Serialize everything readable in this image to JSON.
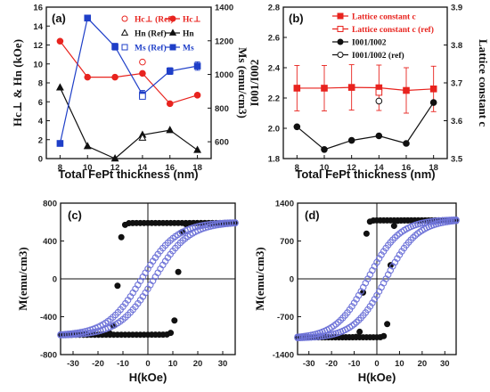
{
  "colors": {
    "red": "#e8231e",
    "blue": "#1f3fc8",
    "black": "#111111",
    "hyst_blue": "#6f74d8"
  },
  "chart_data": [
    {
      "panel": "(a)",
      "type": "line",
      "xlabel": "Total FePt thickness (nm)",
      "ylabel_left": "H<sub>c⊥</sub> & H<sub>n</sub> (kOe)",
      "ylabel_left_text": "Hc⊥ & Hn (kOe)",
      "ylabel_right": "Ms (emu/cm3)",
      "xlim": [
        7,
        19
      ],
      "ylim_left": [
        0,
        16
      ],
      "ylim_right": [
        500,
        1400
      ],
      "xticks": [
        "8",
        "10",
        "12",
        "14",
        "16",
        "18"
      ],
      "yticks_left": [
        "0",
        "2",
        "4",
        "6",
        "8",
        "10",
        "12",
        "14",
        "16"
      ],
      "yticks_right": [
        "600",
        "800",
        "1000",
        "1200",
        "1400"
      ],
      "legend": [
        "Hc⊥ (Ref)",
        "Hc⊥",
        "Hn (Ref)",
        "Hn",
        "Ms (Ref)",
        "Ms"
      ],
      "series": [
        {
          "name": "Hc⊥",
          "axis": "left",
          "color": "red",
          "marker": "circle",
          "filled": true,
          "x": [
            8,
            10,
            12,
            14,
            16,
            18
          ],
          "y": [
            12.4,
            8.6,
            8.6,
            9.0,
            5.8,
            6.7
          ]
        },
        {
          "name": "Hc⊥ (Ref)",
          "axis": "left",
          "color": "red",
          "marker": "circle",
          "filled": false,
          "x": [
            14
          ],
          "y": [
            10.2
          ]
        },
        {
          "name": "Hn",
          "axis": "left",
          "color": "black",
          "marker": "triangle",
          "filled": true,
          "x": [
            8,
            10,
            12,
            14,
            16,
            18
          ],
          "y": [
            7.5,
            1.3,
            0.0,
            2.5,
            3.0,
            0.9
          ]
        },
        {
          "name": "Hn (Ref)",
          "axis": "left",
          "color": "black",
          "marker": "triangle",
          "filled": false,
          "x": [
            14
          ],
          "y": [
            2.2
          ]
        },
        {
          "name": "Ms",
          "axis": "right",
          "color": "blue",
          "marker": "square",
          "filled": true,
          "x": [
            8,
            10,
            12,
            14,
            16,
            18
          ],
          "y": [
            590,
            1335,
            1165,
            880,
            1020,
            1050
          ],
          "err": [
            0,
            15,
            20,
            25,
            20,
            25
          ]
        },
        {
          "name": "Ms (Ref)",
          "axis": "right",
          "color": "blue",
          "marker": "square",
          "filled": false,
          "x": [
            14
          ],
          "y": [
            870
          ]
        }
      ]
    },
    {
      "panel": "(b)",
      "type": "line",
      "xlabel": "Total FePt thickness (nm)",
      "ylabel_left": "I001/I002",
      "ylabel_right": "Lattice constant c",
      "xlim": [
        7,
        19
      ],
      "ylim_left": [
        1.8,
        2.8
      ],
      "ylim_right": [
        3.5,
        3.9
      ],
      "xticks": [
        "8",
        "10",
        "12",
        "14",
        "16",
        "18"
      ],
      "yticks_left": [
        "1.8",
        "2.0",
        "2.2",
        "2.4",
        "2.6",
        "2.8"
      ],
      "yticks_right": [
        "3.5",
        "3.6",
        "3.7",
        "3.8",
        "3.9"
      ],
      "legend": [
        "Lattice constant c",
        "Lattice constant c (ref)",
        "I001/I002",
        "I001/I002 (ref)"
      ],
      "series": [
        {
          "name": "Lattice constant c",
          "axis": "right",
          "color": "red",
          "marker": "square",
          "filled": true,
          "x": [
            8,
            10,
            12,
            14,
            16,
            18
          ],
          "y": [
            3.686,
            3.686,
            3.688,
            3.687,
            3.68,
            3.684
          ],
          "err": [
            0.06,
            0.06,
            0.06,
            0.06,
            0.06,
            0.06
          ]
        },
        {
          "name": "Lattice constant c (ref)",
          "axis": "right",
          "color": "red",
          "marker": "square",
          "filled": false,
          "x": [
            14
          ],
          "y": [
            3.675
          ]
        },
        {
          "name": "I001/I002",
          "axis": "left",
          "color": "black",
          "marker": "circle",
          "filled": true,
          "x": [
            8,
            10,
            12,
            14,
            16,
            18
          ],
          "y": [
            2.01,
            1.86,
            1.92,
            1.95,
            1.9,
            2.17
          ]
        },
        {
          "name": "I001/I002 (ref)",
          "axis": "left",
          "color": "black",
          "marker": "circle",
          "filled": false,
          "x": [
            14
          ],
          "y": [
            2.18
          ]
        }
      ]
    },
    {
      "panel": "(c)",
      "type": "scatter",
      "xlabel": "H(kOe)",
      "ylabel": "M(emu/cm3)",
      "xlim": [
        -35,
        35
      ],
      "ylim": [
        -800,
        800
      ],
      "xticks": [
        "-30",
        "-20",
        "-10",
        "0",
        "10",
        "20",
        "30"
      ],
      "yticks": [
        "-800",
        "-400",
        "0",
        "400",
        "800"
      ],
      "loops": [
        {
          "name": "square loop",
          "color": "black",
          "filled": true,
          "ms": 590,
          "hc": 12,
          "w": 1.4
        },
        {
          "name": "slanted loop",
          "color": "hyst_blue",
          "filled": false,
          "ms": 600,
          "hc": 2.5,
          "w": 14,
          "k": 4
        }
      ]
    },
    {
      "panel": "(d)",
      "type": "scatter",
      "xlabel": "H(kOe)",
      "ylabel": "M(emu/cm3)",
      "xlim": [
        -35,
        35
      ],
      "ylim": [
        -1400,
        1400
      ],
      "xticks": [
        "-30",
        "-20",
        "-10",
        "0",
        "10",
        "20",
        "30"
      ],
      "yticks": [
        "-1400",
        "-700",
        "0",
        "700",
        "1400"
      ],
      "loops": [
        {
          "name": "square loop",
          "color": "black",
          "filled": true,
          "ms": 1080,
          "hc": 5.8,
          "w": 1.2
        },
        {
          "name": "slanted loop",
          "color": "hyst_blue",
          "filled": false,
          "ms": 1100,
          "hc": 4,
          "w": 14,
          "k": 5
        }
      ]
    }
  ]
}
